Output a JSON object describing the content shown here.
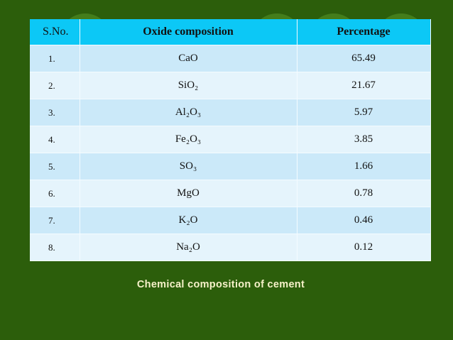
{
  "table": {
    "header": [
      "S.No.",
      "Oxide composition",
      "Percentage"
    ],
    "rows": [
      [
        "1.",
        "CaO",
        "65.49"
      ],
      [
        "2.",
        "SiO₂",
        "21.67"
      ],
      [
        "3.",
        "Al₂O₃",
        "5.97"
      ],
      [
        "4.",
        "Fe₂O₃",
        "3.85"
      ],
      [
        "5.",
        "SO₃",
        "1.66"
      ],
      [
        "6.",
        "MgO",
        "0.78"
      ],
      [
        "7.",
        "K₂O",
        "0.46"
      ],
      [
        "8.",
        "Na₂O",
        "0.12"
      ]
    ]
  },
  "caption": "Chemical composition of cement"
}
